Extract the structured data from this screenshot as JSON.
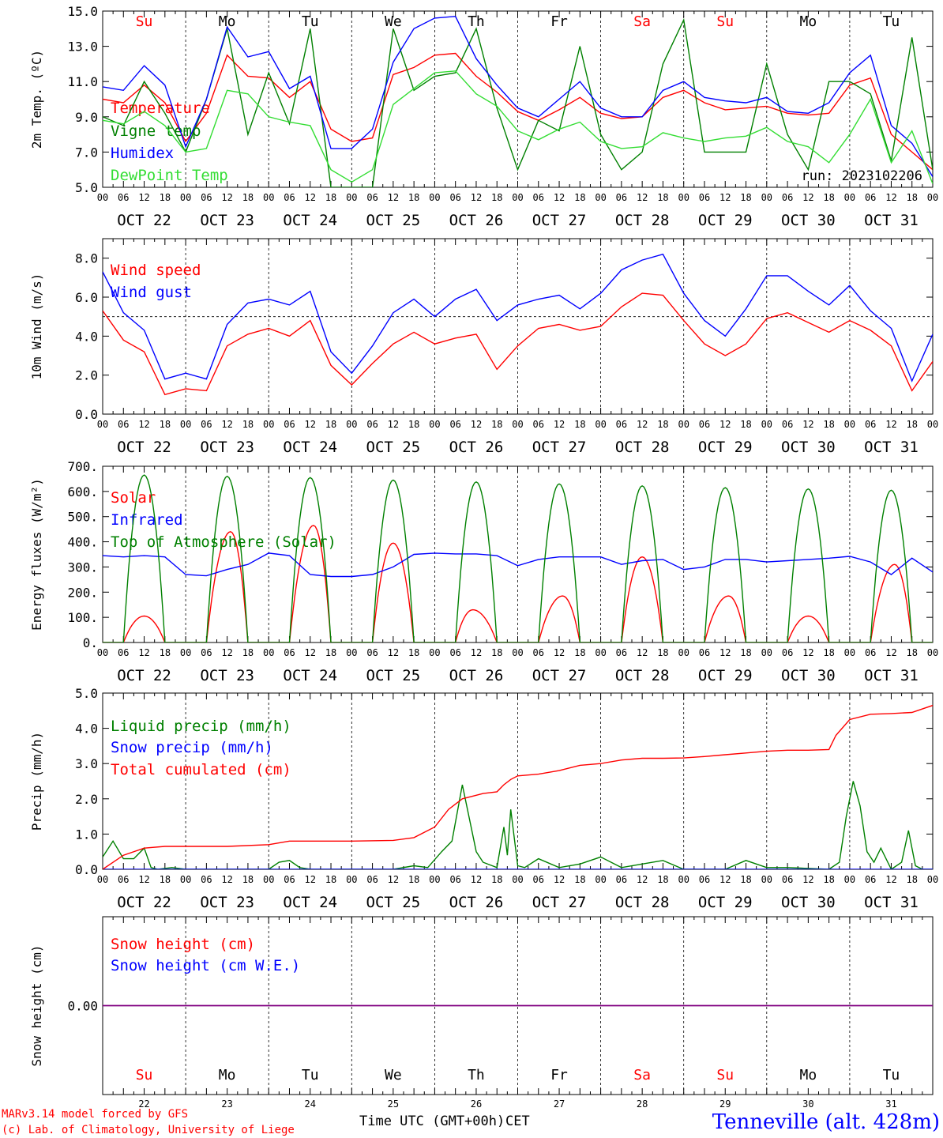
{
  "run_label": "run: 2023102206",
  "footer": {
    "model": "MARv3.14 model forced by GFS",
    "credit": "(c) Lab. of Climatology, University of Liege",
    "xlabel": "Time UTC (GMT+00h)",
    "xlabel_overlay": "CET",
    "station": "Tenneville (alt. 428m)"
  },
  "days": [
    {
      "abbr": "Su",
      "date": "OCT 22",
      "num": "22",
      "weekend": true
    },
    {
      "abbr": "Mo",
      "date": "OCT 23",
      "num": "23",
      "weekend": false
    },
    {
      "abbr": "Tu",
      "date": "OCT 24",
      "num": "24",
      "weekend": false
    },
    {
      "abbr": "We",
      "date": "OCT 25",
      "num": "25",
      "weekend": false
    },
    {
      "abbr": "Th",
      "date": "OCT 26",
      "num": "26",
      "weekend": false
    },
    {
      "abbr": "Fr",
      "date": "OCT 27",
      "num": "27",
      "weekend": false
    },
    {
      "abbr": "Sa",
      "date": "OCT 28",
      "num": "28",
      "weekend": true
    },
    {
      "abbr": "Su",
      "date": "OCT 29",
      "num": "29",
      "weekend": true
    },
    {
      "abbr": "Mo",
      "date": "OCT 30",
      "num": "30",
      "weekend": false
    },
    {
      "abbr": "Tu",
      "date": "OCT 31",
      "num": "31",
      "weekend": false
    }
  ],
  "hour_ticks": [
    "00",
    "06",
    "12",
    "18"
  ],
  "colors": {
    "red": "#ff0000",
    "green": "#008000",
    "blue": "#0000ff",
    "lightgreen": "#33dd33",
    "purple": "#800080"
  },
  "chart_data": [
    {
      "type": "line",
      "ylabel": "2m Temp. (ºC)",
      "ylim": [
        5,
        15
      ],
      "yticks": [
        "5.0",
        "7.0",
        "9.0",
        "11.0",
        "13.0",
        "15.0"
      ],
      "ytick_values": [
        5,
        7,
        9,
        11,
        13,
        15
      ],
      "xlim_hours": [
        0,
        240
      ],
      "series": [
        {
          "name": "Temperature",
          "color": "#ff0000",
          "x": [
            0,
            6,
            12,
            18,
            24,
            30,
            36,
            42,
            48,
            54,
            60,
            66,
            72,
            78,
            84,
            90,
            96,
            102,
            108,
            114,
            120,
            126,
            132,
            138,
            144,
            150,
            156,
            162,
            168,
            174,
            180,
            186,
            192,
            198,
            204,
            210,
            216,
            222,
            228,
            234,
            240
          ],
          "values": [
            10,
            9.8,
            10.8,
            9.8,
            7.6,
            9.2,
            12.5,
            11.3,
            11.2,
            10.1,
            11,
            8.3,
            7.6,
            7.8,
            11.4,
            11.8,
            12.5,
            12.6,
            11.3,
            10.4,
            9.3,
            8.8,
            9.4,
            10.1,
            9.2,
            8.9,
            9,
            10.1,
            10.5,
            9.8,
            9.4,
            9.5,
            9.6,
            9.2,
            9.1,
            9.2,
            10.8,
            11.2,
            8,
            7,
            6
          ]
        },
        {
          "name": "Vigne temp",
          "color": "#008000",
          "x": [
            0,
            6,
            12,
            18,
            24,
            30,
            36,
            42,
            48,
            54,
            60,
            66,
            72,
            78,
            84,
            90,
            96,
            102,
            108,
            114,
            120,
            126,
            132,
            138,
            144,
            150,
            156,
            162,
            168,
            174,
            180,
            186,
            192,
            198,
            204,
            210,
            216,
            222,
            228,
            234,
            240
          ],
          "values": [
            9,
            8.5,
            11,
            9.2,
            7,
            10,
            14,
            8,
            11.5,
            8.6,
            14,
            5,
            5,
            5,
            14,
            10.5,
            11.3,
            11.5,
            14,
            9.5,
            6,
            8.8,
            8.2,
            13,
            8,
            6,
            7,
            12,
            14.5,
            7,
            7,
            7,
            12,
            8,
            6,
            11,
            11,
            10.3,
            6.5,
            13.5,
            6
          ]
        },
        {
          "name": "Humidex",
          "color": "#0000ff",
          "x": [
            0,
            6,
            12,
            18,
            24,
            30,
            36,
            42,
            48,
            54,
            60,
            66,
            72,
            78,
            84,
            90,
            96,
            102,
            108,
            114,
            120,
            126,
            132,
            138,
            144,
            150,
            156,
            162,
            168,
            174,
            180,
            186,
            192,
            198,
            204,
            210,
            216,
            222,
            228,
            234,
            240
          ],
          "values": [
            10.7,
            10.5,
            11.9,
            10.8,
            7.3,
            10,
            14.1,
            12.4,
            12.7,
            10.6,
            11.3,
            7.2,
            7.2,
            8.3,
            12.1,
            14,
            14.6,
            14.7,
            12.3,
            10.8,
            9.5,
            9,
            10,
            11,
            9.5,
            9,
            9,
            10.5,
            11,
            10.1,
            9.9,
            9.8,
            10.1,
            9.3,
            9.2,
            9.8,
            11.5,
            12.5,
            8.5,
            7.5,
            5.6
          ]
        },
        {
          "name": "DewPoint Temp",
          "color": "#33dd33",
          "x": [
            0,
            6,
            12,
            18,
            24,
            30,
            36,
            42,
            48,
            54,
            60,
            66,
            72,
            78,
            84,
            90,
            96,
            102,
            108,
            114,
            120,
            126,
            132,
            138,
            144,
            150,
            156,
            162,
            168,
            174,
            180,
            186,
            192,
            198,
            204,
            210,
            216,
            222,
            228,
            234,
            240
          ],
          "values": [
            8.8,
            8.6,
            9.3,
            8.5,
            7,
            7.2,
            10.5,
            10.3,
            9,
            8.7,
            8.5,
            6,
            5.3,
            6,
            9.7,
            10.6,
            11.5,
            11.6,
            10.3,
            9.6,
            8.2,
            7.7,
            8.3,
            8.7,
            7.6,
            7.2,
            7.3,
            8.1,
            7.8,
            7.6,
            7.8,
            7.9,
            8.4,
            7.6,
            7.3,
            6.4,
            8,
            10,
            6.4,
            8.2,
            5.2
          ]
        }
      ]
    },
    {
      "type": "line",
      "ylabel": "10m Wind (m/s)",
      "ylim": [
        0,
        9
      ],
      "yticks": [
        "0.0",
        "2.0",
        "4.0",
        "6.0",
        "8.0"
      ],
      "ytick_values": [
        0,
        2,
        4,
        6,
        8
      ],
      "reference_line": 5,
      "xlim_hours": [
        0,
        240
      ],
      "series": [
        {
          "name": "Wind speed",
          "color": "#ff0000",
          "x": [
            0,
            6,
            12,
            18,
            24,
            30,
            36,
            42,
            48,
            54,
            60,
            66,
            72,
            78,
            84,
            90,
            96,
            102,
            108,
            114,
            120,
            126,
            132,
            138,
            144,
            150,
            156,
            162,
            168,
            174,
            180,
            186,
            192,
            198,
            204,
            210,
            216,
            222,
            228,
            234,
            240
          ],
          "values": [
            5.3,
            3.8,
            3.2,
            1,
            1.3,
            1.2,
            3.5,
            4.1,
            4.4,
            4,
            4.8,
            2.5,
            1.5,
            2.6,
            3.6,
            4.2,
            3.6,
            3.9,
            4.1,
            2.3,
            3.5,
            4.4,
            4.6,
            4.3,
            4.5,
            5.5,
            6.2,
            6.1,
            4.8,
            3.6,
            3,
            3.6,
            4.9,
            5.2,
            4.7,
            4.2,
            4.8,
            4.3,
            3.5,
            1.2,
            2.7
          ]
        },
        {
          "name": "Wind gust",
          "color": "#0000ff",
          "x": [
            0,
            6,
            12,
            18,
            24,
            30,
            36,
            42,
            48,
            54,
            60,
            66,
            72,
            78,
            84,
            90,
            96,
            102,
            108,
            114,
            120,
            126,
            132,
            138,
            144,
            150,
            156,
            162,
            168,
            174,
            180,
            186,
            192,
            198,
            204,
            210,
            216,
            222,
            228,
            234,
            240
          ],
          "values": [
            7.3,
            5.2,
            4.3,
            1.8,
            2.1,
            1.8,
            4.6,
            5.7,
            5.9,
            5.6,
            6.3,
            3.2,
            2.1,
            3.5,
            5.2,
            5.9,
            5,
            5.9,
            6.4,
            4.8,
            5.6,
            5.9,
            6.1,
            5.4,
            6.2,
            7.4,
            7.9,
            8.2,
            6.2,
            4.8,
            4,
            5.4,
            7.1,
            7.1,
            6.3,
            5.6,
            6.6,
            5.3,
            4.4,
            1.7,
            4.1
          ]
        }
      ]
    },
    {
      "type": "line",
      "ylabel": "Energy fluxes (W/m²)",
      "ylim": [
        0,
        700
      ],
      "yticks": [
        "0.",
        "100.",
        "200.",
        "300.",
        "400.",
        "500.",
        "600.",
        "700."
      ],
      "ytick_values": [
        0,
        100,
        200,
        300,
        400,
        500,
        600,
        700
      ],
      "xlim_hours": [
        0,
        240
      ],
      "series": [
        {
          "name": "Solar",
          "color": "#ff0000",
          "day_peaks": [
            105,
            440,
            465,
            395,
            130,
            185,
            340,
            185,
            105,
            310
          ],
          "day_peak_hour": [
            12,
            13,
            13,
            12,
            11,
            13,
            12,
            13,
            12,
            13
          ]
        },
        {
          "name": "Infrared",
          "color": "#0000ff",
          "x": [
            0,
            6,
            12,
            18,
            24,
            30,
            36,
            42,
            48,
            54,
            60,
            66,
            72,
            78,
            84,
            90,
            96,
            102,
            108,
            114,
            120,
            126,
            132,
            138,
            144,
            150,
            156,
            162,
            168,
            174,
            180,
            186,
            192,
            198,
            204,
            210,
            216,
            222,
            228,
            234,
            240
          ],
          "values": [
            345,
            340,
            345,
            340,
            270,
            265,
            290,
            310,
            355,
            345,
            270,
            262,
            262,
            270,
            300,
            350,
            355,
            352,
            352,
            345,
            305,
            330,
            340,
            340,
            340,
            310,
            325,
            330,
            290,
            300,
            330,
            330,
            320,
            325,
            330,
            335,
            342,
            320,
            270,
            335,
            280
          ]
        },
        {
          "name": "Top of Atmosphere (Solar)",
          "color": "#008000",
          "day_peaks": [
            665,
            660,
            655,
            645,
            638,
            630,
            622,
            615,
            610,
            605
          ],
          "day_peak_hour": [
            12,
            12,
            12,
            12,
            12,
            12,
            12,
            12,
            12,
            12
          ]
        }
      ]
    },
    {
      "type": "line",
      "ylabel": "Precip (mm/h)",
      "ylim": [
        0,
        5
      ],
      "yticks": [
        "0.0",
        "1.0",
        "2.0",
        "3.0",
        "4.0",
        "5.0"
      ],
      "ytick_values": [
        0,
        1,
        2,
        3,
        4,
        5
      ],
      "xlim_hours": [
        0,
        240
      ],
      "series": [
        {
          "name": "Liquid precip (mm/h)",
          "color": "#008000",
          "x": [
            0,
            3,
            6,
            9,
            12,
            14,
            16,
            20,
            24,
            36,
            48,
            51,
            54,
            57,
            60,
            72,
            84,
            90,
            94,
            98,
            101,
            104,
            108,
            110,
            114,
            116,
            117,
            118,
            120,
            122,
            126,
            132,
            138,
            144,
            150,
            156,
            162,
            168,
            180,
            186,
            192,
            198,
            210,
            213,
            215,
            217,
            219,
            221,
            223,
            225,
            228,
            231,
            233,
            235,
            237,
            240
          ],
          "values": [
            0.35,
            0.8,
            0.3,
            0.3,
            0.6,
            0.05,
            0,
            0.05,
            0,
            0,
            0,
            0.2,
            0.25,
            0.05,
            0,
            0,
            0,
            0.1,
            0.05,
            0.5,
            0.8,
            2.4,
            0.5,
            0.2,
            0.05,
            1.2,
            0.4,
            1.7,
            0.1,
            0.05,
            0.3,
            0.05,
            0.15,
            0.35,
            0.05,
            0.15,
            0.25,
            0,
            0,
            0.25,
            0.05,
            0.05,
            0,
            0.2,
            1.5,
            2.5,
            1.8,
            0.5,
            0.2,
            0.6,
            0,
            0.2,
            1.1,
            0.1,
            0,
            0
          ]
        },
        {
          "name": "Snow precip (mm/h)",
          "color": "#0000ff",
          "x": [
            0,
            240
          ],
          "values": [
            0,
            0
          ]
        },
        {
          "name": "Total cumulated (cm)",
          "color": "#ff0000",
          "x": [
            0,
            6,
            12,
            18,
            24,
            36,
            48,
            54,
            60,
            72,
            84,
            90,
            96,
            100,
            104,
            108,
            110,
            114,
            116,
            118,
            120,
            126,
            132,
            138,
            144,
            150,
            156,
            162,
            168,
            174,
            180,
            186,
            192,
            198,
            204,
            210,
            212,
            216,
            222,
            228,
            234,
            240
          ],
          "values": [
            0,
            0.4,
            0.6,
            0.65,
            0.65,
            0.65,
            0.7,
            0.8,
            0.8,
            0.8,
            0.82,
            0.9,
            1.2,
            1.7,
            2.0,
            2.1,
            2.15,
            2.2,
            2.4,
            2.55,
            2.65,
            2.7,
            2.8,
            2.95,
            3.0,
            3.1,
            3.15,
            3.15,
            3.16,
            3.2,
            3.25,
            3.3,
            3.35,
            3.38,
            3.38,
            3.4,
            3.8,
            4.25,
            4.4,
            4.42,
            4.45,
            4.65
          ]
        }
      ]
    },
    {
      "type": "line",
      "ylabel": "Snow height (cm)",
      "yticks": [
        "0.00"
      ],
      "ytick_values": [
        0
      ],
      "ylim": [
        -1,
        1
      ],
      "xlim_hours": [
        0,
        240
      ],
      "series": [
        {
          "name": "Snow height (cm)",
          "color": "#ff0000",
          "x": [
            0,
            240
          ],
          "values": [
            0,
            0
          ]
        },
        {
          "name": "Snow height (cm W.E.)",
          "color": "#0000ff",
          "x": [
            0,
            240
          ],
          "values": [
            0,
            0
          ]
        }
      ]
    }
  ]
}
